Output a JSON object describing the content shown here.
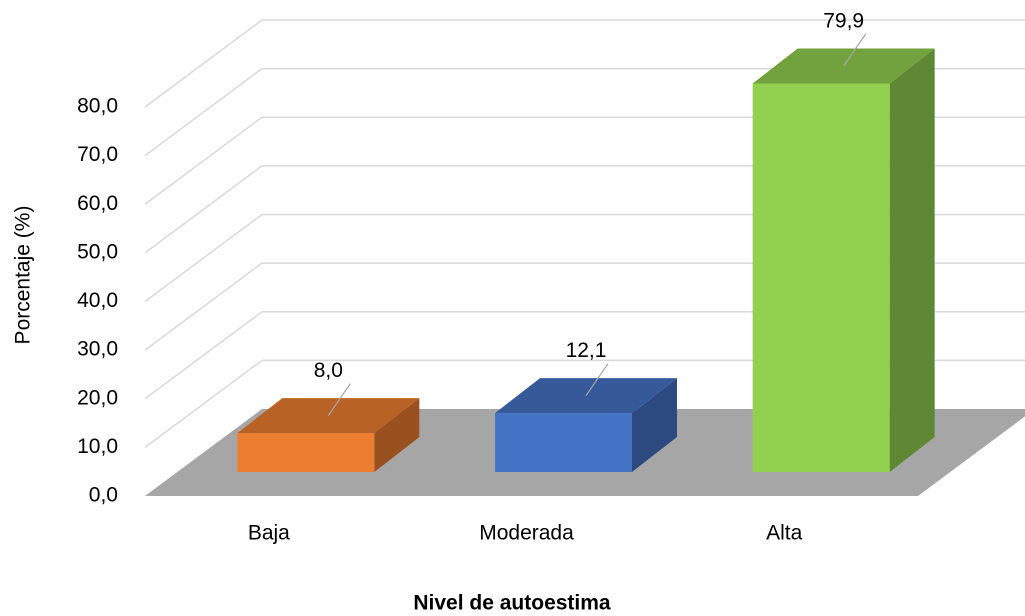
{
  "chart_data": {
    "type": "bar3d",
    "y_label": "Porcentaje (%)",
    "x_label": "Nivel de autoestima",
    "categories": [
      "Baja",
      "Moderada",
      "Alta"
    ],
    "values": [
      8.0,
      12.1,
      79.9
    ],
    "value_labels": [
      "8,0",
      "12,1",
      "79,9"
    ],
    "colors": [
      "#ed7d31",
      "#4472c4",
      "#92d050"
    ],
    "ylim": [
      0,
      80
    ],
    "yticks": [
      {
        "value": 0,
        "label": "0,0"
      },
      {
        "value": 10,
        "label": "10,0"
      },
      {
        "value": 20,
        "label": "20,0"
      },
      {
        "value": 30,
        "label": "30,0"
      },
      {
        "value": 40,
        "label": "40,0"
      },
      {
        "value": 50,
        "label": "50,0"
      },
      {
        "value": 60,
        "label": "60,0"
      },
      {
        "value": 70,
        "label": "70,0"
      },
      {
        "value": 80,
        "label": "80,0"
      }
    ],
    "grid": true
  }
}
